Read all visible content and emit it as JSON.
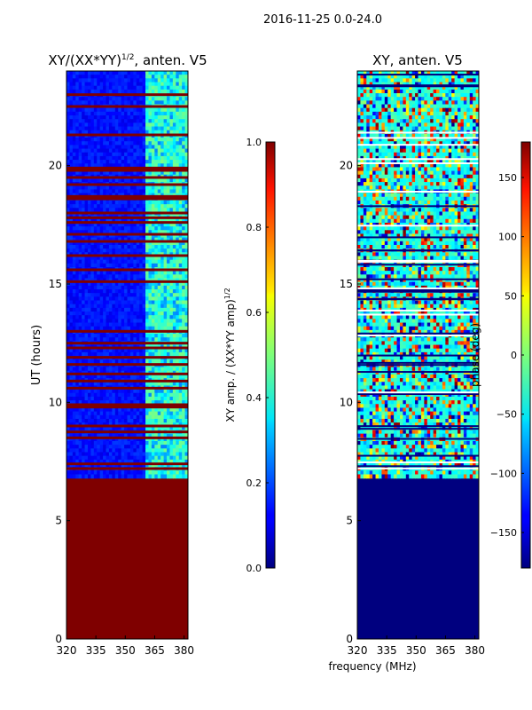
{
  "suptitle": "2016-11-25 0.0-24.0",
  "colors": {
    "nodata": "#7f0000",
    "background": "#ffffff",
    "frame": "#000000"
  },
  "chart_data": [
    {
      "type": "heatmap",
      "title_main": "XY/(XX*YY)",
      "title_sup": "1/2",
      "title_tail": ", anten. V5",
      "ylabel": "UT (hours)",
      "xlabel": "",
      "xlim": [
        320,
        382
      ],
      "ylim": [
        0,
        24
      ],
      "xticks": [
        320,
        335,
        350,
        365,
        380
      ],
      "yticks": [
        0,
        5,
        10,
        15,
        20
      ],
      "data_start_hour": 6.8,
      "flagged_rows_hours": [
        7.2,
        7.4,
        8.5,
        8.75,
        9.0,
        9.8,
        9.9,
        10.6,
        10.9,
        11.2,
        11.6,
        11.9,
        12.3,
        12.5,
        13.0,
        15.1,
        15.6,
        16.2,
        16.8,
        17.1,
        17.6,
        17.8,
        18.0,
        18.6,
        18.7,
        19.2,
        19.5,
        19.8,
        19.9,
        21.3,
        22.5,
        23.0
      ],
      "colorbar": {
        "label_main": "XY amp. / (XX*YY amp)",
        "label_sup": "1/2",
        "min": 0.0,
        "max": 1.0,
        "ticks": [
          "0.0",
          "0.2",
          "0.4",
          "0.6",
          "0.8",
          "1.0"
        ],
        "tick_values": [
          0.0,
          0.2,
          0.4,
          0.6,
          0.8,
          1.0
        ]
      }
    },
    {
      "type": "heatmap",
      "title_main": "XY, anten. V5",
      "ylabel": "",
      "xlabel": "frequency (MHz)",
      "xlim": [
        320,
        382
      ],
      "ylim": [
        0,
        24
      ],
      "xticks": [
        320,
        335,
        350,
        365,
        380
      ],
      "yticks": [
        0,
        5,
        10,
        15,
        20
      ],
      "data_start_hour": 6.8,
      "colorbar": {
        "label_main": "phase (deg)",
        "min": -180,
        "max": 180,
        "ticks": [
          "150",
          "100",
          "50",
          "0",
          "−50",
          "−100",
          "−150"
        ],
        "tick_values": [
          150,
          100,
          50,
          0,
          -50,
          -100,
          -150
        ]
      }
    }
  ]
}
